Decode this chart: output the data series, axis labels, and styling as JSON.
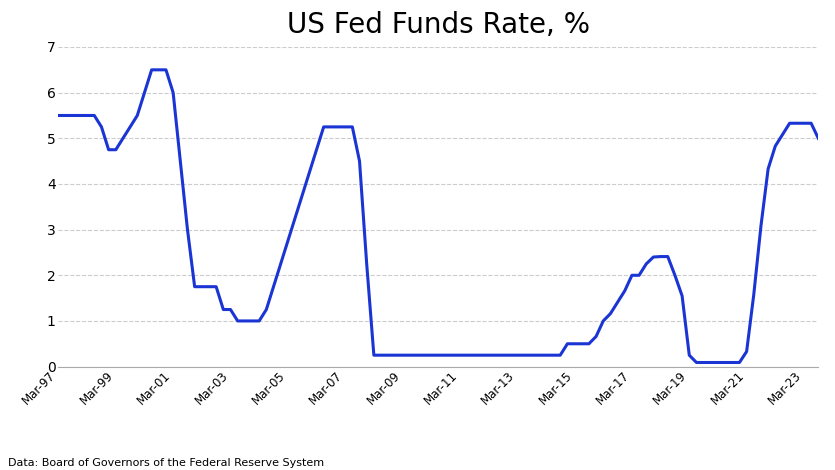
{
  "title": "US Fed Funds Rate, %",
  "title_fontsize": 20,
  "line_color": "#1a35d4",
  "line_width": 2.2,
  "background_color": "#ffffff",
  "grid_color": "#cccccc",
  "ylabel_vals": [
    0,
    1,
    2,
    3,
    4,
    5,
    6,
    7
  ],
  "source_text": "Data: Board of Governors of the Federal Reserve System",
  "fxpro_bg": "#cc1111",
  "values": [
    5.5,
    5.5,
    5.5,
    5.5,
    5.5,
    5.5,
    5.25,
    4.75,
    4.75,
    5.0,
    5.25,
    5.5,
    6.0,
    6.5,
    6.5,
    6.5,
    6.0,
    4.5,
    3.0,
    1.75,
    1.75,
    1.75,
    1.75,
    1.25,
    1.25,
    1.0,
    1.0,
    1.0,
    1.0,
    1.25,
    1.75,
    2.25,
    2.75,
    3.25,
    3.75,
    4.25,
    4.75,
    5.25,
    5.25,
    5.25,
    5.25,
    5.25,
    4.5,
    2.25,
    0.25,
    0.25,
    0.25,
    0.25,
    0.25,
    0.25,
    0.25,
    0.25,
    0.25,
    0.25,
    0.25,
    0.25,
    0.25,
    0.25,
    0.25,
    0.25,
    0.25,
    0.25,
    0.25,
    0.25,
    0.25,
    0.25,
    0.25,
    0.25,
    0.25,
    0.25,
    0.25,
    0.5,
    0.5,
    0.5,
    0.5,
    0.66,
    1.0,
    1.16,
    1.41,
    1.66,
    2.0,
    2.0,
    2.25,
    2.4,
    2.41,
    2.41,
    2.0,
    1.55,
    0.25,
    0.09,
    0.09,
    0.09,
    0.09,
    0.09,
    0.09,
    0.09,
    0.33,
    1.58,
    3.08,
    4.33,
    4.83,
    5.08,
    5.33,
    5.33,
    5.33,
    5.33,
    5.0
  ],
  "xtick_positions": [
    0,
    8,
    16,
    24,
    32,
    40,
    48,
    56,
    64,
    72,
    80,
    88,
    96,
    104
  ],
  "xtick_labels": [
    "Mar-97",
    "Mar-99",
    "Mar-01",
    "Mar-03",
    "Mar-05",
    "Mar-07",
    "Mar-09",
    "Mar-11",
    "Mar-13",
    "Mar-15",
    "Mar-17",
    "Mar-19",
    "Mar-21",
    "Mar-23"
  ]
}
